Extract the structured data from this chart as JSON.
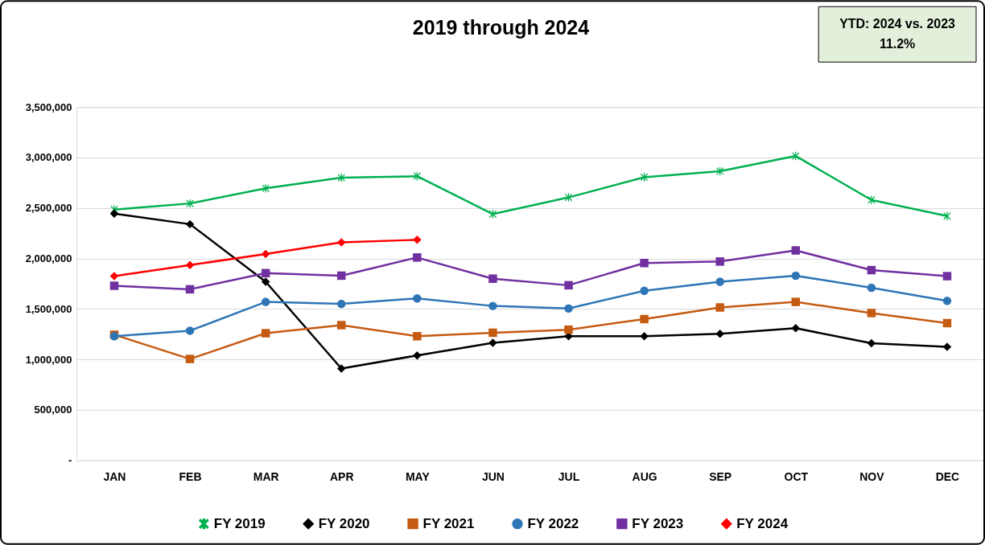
{
  "chart_data": {
    "type": "line",
    "title": "2019 through 2024",
    "categories": [
      "JAN",
      "FEB",
      "MAR",
      "APR",
      "MAY",
      "JUN",
      "JUL",
      "AUG",
      "SEP",
      "OCT",
      "NOV",
      "DEC"
    ],
    "series": [
      {
        "name": "FY 2019",
        "color": "#00b050",
        "marker": "cross",
        "values": [
          2485000,
          2545000,
          2695000,
          2800000,
          2815000,
          2440000,
          2605000,
          2805000,
          2865000,
          3015000,
          2580000,
          2420000
        ]
      },
      {
        "name": "FY 2020",
        "color": "#000000",
        "marker": "diamond",
        "values": [
          2445000,
          2340000,
          1770000,
          910000,
          1040000,
          1165000,
          1230000,
          1230000,
          1255000,
          1310000,
          1160000,
          1125000
        ]
      },
      {
        "name": "FY 2021",
        "color": "#c55a11",
        "marker": "square",
        "values": [
          1245000,
          1005000,
          1260000,
          1340000,
          1230000,
          1265000,
          1295000,
          1400000,
          1515000,
          1570000,
          1460000,
          1360000
        ]
      },
      {
        "name": "FY 2022",
        "color": "#2e75b6",
        "marker": "circle",
        "values": [
          1230000,
          1285000,
          1570000,
          1550000,
          1605000,
          1530000,
          1505000,
          1680000,
          1770000,
          1830000,
          1710000,
          1580000
        ]
      },
      {
        "name": "FY 2023",
        "color": "#7030a0",
        "marker": "square",
        "values": [
          1730000,
          1695000,
          1855000,
          1830000,
          2010000,
          1800000,
          1735000,
          1955000,
          1970000,
          2080000,
          1885000,
          1825000
        ]
      },
      {
        "name": "FY 2024",
        "color": "#ff0000",
        "marker": "diamond",
        "values": [
          1825000,
          1935000,
          2045000,
          2160000,
          2185000,
          null,
          null,
          null,
          null,
          null,
          null,
          null
        ]
      }
    ],
    "ylim": [
      0,
      3500000
    ],
    "yticks": [
      {
        "value": 0,
        "label": "-"
      },
      {
        "value": 500000,
        "label": "500,000"
      },
      {
        "value": 1000000,
        "label": "1,000,000"
      },
      {
        "value": 1500000,
        "label": "1,500,000"
      },
      {
        "value": 2000000,
        "label": "2,000,000"
      },
      {
        "value": 2500000,
        "label": "2,500,000"
      },
      {
        "value": 3000000,
        "label": "3,000,000"
      },
      {
        "value": 3500000,
        "label": "3,500,000"
      }
    ],
    "grid": "y",
    "legend": "bottom",
    "annotations": [
      "YTD: 2024 vs. 2023",
      "11.2%"
    ]
  }
}
